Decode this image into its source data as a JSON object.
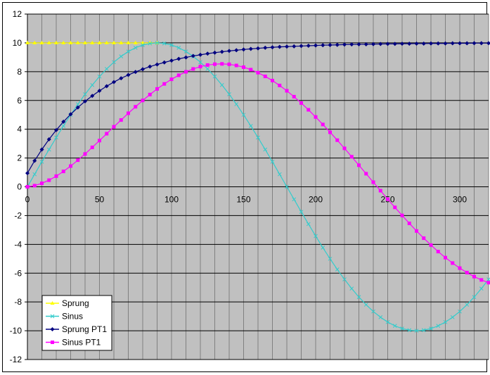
{
  "chart_data": {
    "type": "line",
    "title": "",
    "xlabel": "",
    "ylabel": "",
    "xlim": [
      0,
      320
    ],
    "ylim": [
      -12,
      12
    ],
    "x_ticks": [
      0,
      50,
      100,
      150,
      200,
      250,
      300
    ],
    "y_ticks": [
      -12,
      -10,
      -8,
      -6,
      -4,
      -2,
      0,
      2,
      4,
      6,
      8,
      10,
      12
    ],
    "x_tick_labels": [
      "0",
      "50",
      "100",
      "150",
      "200",
      "250",
      "300"
    ],
    "y_tick_labels": [
      "-12",
      "-10",
      "-8",
      "-6",
      "-4",
      "-2",
      "0",
      "2",
      "4",
      "6",
      "8",
      "10",
      "12"
    ],
    "grid": true,
    "plot_background": "#c0c0c0",
    "grid_color": "#808080",
    "legend_position": "bottom-left",
    "x_step": 5,
    "series": [
      {
        "name": "Sprung",
        "color": "#ffff00",
        "marker": "triangle",
        "x_start": 0,
        "x_end": 90,
        "values": [
          10,
          10,
          10,
          10,
          10,
          10,
          10,
          10,
          10,
          10,
          10,
          10,
          10,
          10,
          10,
          10,
          10,
          10,
          10
        ]
      },
      {
        "name": "Sinus",
        "color": "#33cccc",
        "marker": "x",
        "x_start": 0,
        "x_end": 320,
        "values": [
          0,
          0.87,
          1.74,
          2.59,
          3.42,
          4.23,
          5,
          5.74,
          6.43,
          7.07,
          7.66,
          8.19,
          8.66,
          9.06,
          9.4,
          9.66,
          9.85,
          9.96,
          10,
          9.96,
          9.85,
          9.66,
          9.4,
          9.06,
          8.66,
          8.19,
          7.66,
          7.07,
          6.43,
          5.74,
          5,
          4.23,
          3.42,
          2.59,
          1.74,
          0.87,
          0,
          -0.87,
          -1.74,
          -2.59,
          -3.42,
          -4.23,
          -5,
          -5.74,
          -6.43,
          -7.07,
          -7.66,
          -8.19,
          -8.66,
          -9.06,
          -9.4,
          -9.66,
          -9.85,
          -9.96,
          -10,
          -9.96,
          -9.85,
          -9.66,
          -9.4,
          -9.06,
          -8.66,
          -8.19,
          -7.66,
          -7.07,
          -6.43
        ]
      },
      {
        "name": "Sprung PT1",
        "color": "#000080",
        "marker": "diamond",
        "x_start": 0,
        "x_end": 320,
        "values": [
          0.95,
          1.81,
          2.59,
          3.3,
          3.94,
          4.52,
          5.04,
          5.51,
          5.94,
          6.32,
          6.67,
          6.99,
          7.28,
          7.54,
          7.77,
          7.98,
          8.17,
          8.35,
          8.5,
          8.64,
          8.77,
          8.89,
          8.99,
          9.09,
          9.17,
          9.25,
          9.32,
          9.38,
          9.44,
          9.49,
          9.54,
          9.58,
          9.62,
          9.66,
          9.69,
          9.72,
          9.74,
          9.76,
          9.78,
          9.8,
          9.82,
          9.84,
          9.85,
          9.86,
          9.88,
          9.89,
          9.9,
          9.9,
          9.91,
          9.92,
          9.93,
          9.93,
          9.94,
          9.94,
          9.95,
          9.95,
          9.96,
          9.96,
          9.96,
          9.97,
          9.97,
          9.97,
          9.98,
          9.98,
          9.98
        ]
      },
      {
        "name": "Sinus PT1",
        "color": "#ff00ff",
        "marker": "square",
        "x_start": 0,
        "x_end": 320,
        "values": [
          0,
          0.08,
          0.24,
          0.46,
          0.74,
          1.07,
          1.44,
          1.85,
          2.28,
          2.74,
          3.21,
          3.69,
          4.17,
          4.64,
          5.11,
          5.56,
          6.0,
          6.41,
          6.8,
          7.15,
          7.47,
          7.75,
          7.99,
          8.19,
          8.35,
          8.46,
          8.52,
          8.54,
          8.51,
          8.43,
          8.31,
          8.14,
          7.93,
          7.67,
          7.38,
          7.04,
          6.67,
          6.26,
          5.82,
          5.35,
          4.85,
          4.33,
          3.79,
          3.24,
          2.67,
          2.09,
          1.5,
          0.91,
          0.32,
          -0.27,
          -0.86,
          -1.43,
          -1.99,
          -2.54,
          -3.07,
          -3.57,
          -4.05,
          -4.5,
          -4.92,
          -5.3,
          -5.65,
          -5.96,
          -6.24,
          -6.47,
          -6.66
        ]
      }
    ]
  }
}
